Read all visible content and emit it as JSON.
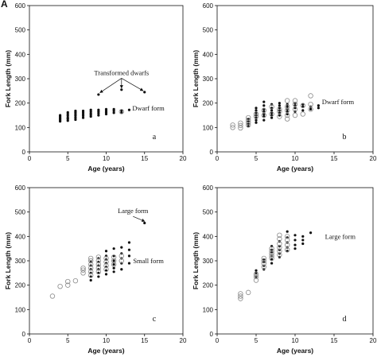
{
  "figure_letter": "A",
  "chart_data": [
    {
      "type": "scatter",
      "panel_label": "a",
      "xlabel": "Age (years)",
      "ylabel": "Fork Length (mm)",
      "xlim": [
        0,
        20
      ],
      "ylim": [
        0,
        600
      ],
      "xticks": [
        0,
        5,
        10,
        15,
        20
      ],
      "yticks": [
        0,
        100,
        200,
        300,
        400,
        500,
        600
      ],
      "grid": false,
      "series": [
        {
          "marker": "filled",
          "points": [
            [
              4,
              125
            ],
            [
              4,
              130
            ],
            [
              4,
              135
            ],
            [
              4,
              140
            ],
            [
              4,
              145
            ],
            [
              4,
              150
            ],
            [
              5,
              128
            ],
            [
              5,
              135
            ],
            [
              5,
              140
            ],
            [
              5,
              148
            ],
            [
              5,
              155
            ],
            [
              5,
              162
            ],
            [
              6,
              132
            ],
            [
              6,
              140
            ],
            [
              6,
              148
            ],
            [
              6,
              155
            ],
            [
              6,
              162
            ],
            [
              6,
              168
            ],
            [
              7,
              140
            ],
            [
              7,
              148
            ],
            [
              7,
              155
            ],
            [
              7,
              162
            ],
            [
              7,
              168
            ],
            [
              8,
              145
            ],
            [
              8,
              152
            ],
            [
              8,
              158
            ],
            [
              8,
              165
            ],
            [
              8,
              172
            ],
            [
              9,
              150
            ],
            [
              9,
              158
            ],
            [
              9,
              165
            ],
            [
              9,
              172
            ],
            [
              10,
              155
            ],
            [
              10,
              162
            ],
            [
              10,
              168
            ],
            [
              10,
              175
            ],
            [
              11,
              160
            ],
            [
              11,
              168
            ],
            [
              11,
              175
            ],
            [
              12,
              162
            ],
            [
              12,
              170
            ],
            [
              13,
              172
            ],
            [
              9,
              235
            ],
            [
              12,
              255
            ],
            [
              15,
              245
            ]
          ]
        },
        {
          "marker": "open",
          "points": [
            [
              12,
              165
            ]
          ]
        }
      ],
      "annotations": [
        {
          "text": "Transformed dwarfs",
          "x": 12,
          "y": 315,
          "arrows_to": [
            [
              9.2,
              243
            ],
            [
              12,
              262
            ],
            [
              14.8,
              251
            ]
          ]
        },
        {
          "text": "Dwarf form",
          "x": 15.5,
          "y": 170
        }
      ]
    },
    {
      "type": "scatter",
      "panel_label": "b",
      "xlabel": "Age (years)",
      "ylabel": "Fork Length (mm)",
      "xlim": [
        0,
        20
      ],
      "ylim": [
        0,
        600
      ],
      "xticks": [
        0,
        5,
        10,
        15,
        20
      ],
      "yticks": [
        0,
        100,
        200,
        300,
        400,
        500,
        600
      ],
      "grid": false,
      "series": [
        {
          "marker": "filled",
          "points": [
            [
              4,
              105
            ],
            [
              4,
              115
            ],
            [
              4,
              125
            ],
            [
              4,
              135
            ],
            [
              5,
              120
            ],
            [
              5,
              130
            ],
            [
              5,
              140
            ],
            [
              5,
              150
            ],
            [
              5,
              160
            ],
            [
              5,
              170
            ],
            [
              5,
              180
            ],
            [
              6,
              130
            ],
            [
              6,
              145
            ],
            [
              6,
              155
            ],
            [
              6,
              165
            ],
            [
              6,
              175
            ],
            [
              6,
              190
            ],
            [
              6,
              205
            ],
            [
              7,
              140
            ],
            [
              7,
              150
            ],
            [
              7,
              160
            ],
            [
              7,
              170
            ],
            [
              7,
              180
            ],
            [
              7,
              195
            ],
            [
              8,
              150
            ],
            [
              8,
              160
            ],
            [
              8,
              170
            ],
            [
              8,
              180
            ],
            [
              8,
              190
            ],
            [
              8,
              200
            ],
            [
              9,
              155
            ],
            [
              9,
              165
            ],
            [
              9,
              175
            ],
            [
              9,
              185
            ],
            [
              9,
              195
            ],
            [
              10,
              165
            ],
            [
              10,
              180
            ],
            [
              10,
              190
            ],
            [
              10,
              200
            ],
            [
              11,
              170
            ],
            [
              11,
              185
            ],
            [
              11,
              195
            ],
            [
              12,
              175
            ],
            [
              12,
              185
            ],
            [
              13,
              180
            ],
            [
              13,
              190
            ]
          ]
        },
        {
          "marker": "open",
          "points": [
            [
              2,
              100
            ],
            [
              2,
              110
            ],
            [
              3,
              98
            ],
            [
              3,
              108
            ],
            [
              3,
              118
            ],
            [
              4,
              110
            ],
            [
              4,
              120
            ],
            [
              4,
              130
            ],
            [
              4,
              140
            ],
            [
              5,
              145
            ],
            [
              5,
              155
            ],
            [
              6,
              150
            ],
            [
              6,
              170
            ],
            [
              7,
              155
            ],
            [
              7,
              185
            ],
            [
              8,
              145
            ],
            [
              8,
              165
            ],
            [
              8,
              175
            ],
            [
              9,
              135
            ],
            [
              9,
              150
            ],
            [
              9,
              170
            ],
            [
              9,
              185
            ],
            [
              9,
              210
            ],
            [
              10,
              150
            ],
            [
              10,
              175
            ],
            [
              10,
              195
            ],
            [
              10,
              210
            ],
            [
              11,
              155
            ],
            [
              11,
              190
            ],
            [
              12,
              175
            ],
            [
              12,
              195
            ],
            [
              12,
              230
            ]
          ]
        }
      ],
      "annotations": [
        {
          "text": "Dwarf form",
          "x": 15.5,
          "y": 195
        }
      ]
    },
    {
      "type": "scatter",
      "panel_label": "c",
      "xlabel": "Age (years)",
      "ylabel": "Fork Length (mm)",
      "xlim": [
        0,
        20
      ],
      "ylim": [
        0,
        600
      ],
      "xticks": [
        0,
        5,
        10,
        15,
        20
      ],
      "yticks": [
        0,
        100,
        200,
        300,
        400,
        500,
        600
      ],
      "grid": false,
      "series": [
        {
          "marker": "filled",
          "points": [
            [
              8,
              220
            ],
            [
              8,
              235
            ],
            [
              8,
              250
            ],
            [
              8,
              265
            ],
            [
              8,
              280
            ],
            [
              8,
              295
            ],
            [
              9,
              235
            ],
            [
              9,
              250
            ],
            [
              9,
              265
            ],
            [
              9,
              280
            ],
            [
              9,
              295
            ],
            [
              9,
              310
            ],
            [
              10,
              245
            ],
            [
              10,
              260
            ],
            [
              10,
              275
            ],
            [
              10,
              290
            ],
            [
              10,
              305
            ],
            [
              10,
              320
            ],
            [
              10,
              340
            ],
            [
              11,
              255
            ],
            [
              11,
              270
            ],
            [
              11,
              285
            ],
            [
              11,
              300
            ],
            [
              11,
              320
            ],
            [
              11,
              350
            ],
            [
              12,
              265
            ],
            [
              12,
              290
            ],
            [
              12,
              310
            ],
            [
              12,
              330
            ],
            [
              12,
              355
            ],
            [
              13,
              290
            ],
            [
              13,
              320
            ],
            [
              13,
              345
            ],
            [
              13,
              375
            ],
            [
              15,
              455
            ]
          ]
        },
        {
          "marker": "open",
          "points": [
            [
              3,
              155
            ],
            [
              4,
              195
            ],
            [
              5,
              200
            ],
            [
              5,
              215
            ],
            [
              6,
              218
            ],
            [
              7,
              250
            ],
            [
              7,
              262
            ],
            [
              7,
              270
            ],
            [
              8,
              240
            ],
            [
              8,
              255
            ],
            [
              8,
              270
            ],
            [
              8,
              285
            ],
            [
              8,
              300
            ],
            [
              8,
              310
            ],
            [
              9,
              255
            ],
            [
              9,
              270
            ],
            [
              9,
              285
            ],
            [
              9,
              300
            ],
            [
              9,
              315
            ],
            [
              10,
              265
            ],
            [
              10,
              280
            ],
            [
              10,
              295
            ],
            [
              10,
              310
            ],
            [
              11,
              285
            ],
            [
              11,
              300
            ],
            [
              11,
              315
            ],
            [
              12,
              300
            ],
            [
              12,
              320
            ]
          ]
        }
      ],
      "annotations": [
        {
          "text": "Large form",
          "x": 13.5,
          "y": 495,
          "arrows_to": [
            [
              15,
              462
            ]
          ]
        },
        {
          "text": "Small form",
          "x": 15.5,
          "y": 290
        }
      ]
    },
    {
      "type": "scatter",
      "panel_label": "d",
      "xlabel": "Age (years)",
      "ylabel": "Fork Length (mm)",
      "xlim": [
        0,
        20
      ],
      "ylim": [
        0,
        600
      ],
      "xticks": [
        0,
        5,
        10,
        15,
        20
      ],
      "yticks": [
        0,
        100,
        200,
        300,
        400,
        500,
        600
      ],
      "grid": false,
      "series": [
        {
          "marker": "filled",
          "points": [
            [
              5,
              235
            ],
            [
              5,
              250
            ],
            [
              5,
              260
            ],
            [
              6,
              265
            ],
            [
              6,
              280
            ],
            [
              6,
              295
            ],
            [
              6,
              305
            ],
            [
              7,
              290
            ],
            [
              7,
              305
            ],
            [
              7,
              320
            ],
            [
              7,
              335
            ],
            [
              7,
              345
            ],
            [
              7,
              360
            ],
            [
              8,
              315
            ],
            [
              8,
              330
            ],
            [
              8,
              345
            ],
            [
              8,
              360
            ],
            [
              8,
              380
            ],
            [
              9,
              340
            ],
            [
              9,
              355
            ],
            [
              9,
              375
            ],
            [
              9,
              395
            ],
            [
              9,
              420
            ],
            [
              10,
              350
            ],
            [
              10,
              365
            ],
            [
              10,
              385
            ],
            [
              10,
              405
            ],
            [
              11,
              370
            ],
            [
              11,
              385
            ],
            [
              11,
              400
            ],
            [
              12,
              415
            ]
          ]
        },
        {
          "marker": "open",
          "points": [
            [
              3,
              145
            ],
            [
              3,
              155
            ],
            [
              3,
              165
            ],
            [
              4,
              170
            ],
            [
              5,
              220
            ],
            [
              5,
              235
            ],
            [
              5,
              245
            ],
            [
              6,
              275
            ],
            [
              6,
              290
            ],
            [
              6,
              300
            ],
            [
              6,
              310
            ],
            [
              7,
              310
            ],
            [
              7,
              320
            ],
            [
              7,
              330
            ],
            [
              7,
              340
            ],
            [
              7,
              350
            ],
            [
              8,
              325
            ],
            [
              8,
              340
            ],
            [
              8,
              355
            ],
            [
              8,
              370
            ],
            [
              8,
              390
            ],
            [
              8,
              405
            ],
            [
              9,
              345
            ],
            [
              9,
              365
            ],
            [
              9,
              385
            ],
            [
              9,
              400
            ]
          ]
        }
      ],
      "annotations": [
        {
          "text": "Large form",
          "x": 15.8,
          "y": 390
        }
      ]
    }
  ]
}
